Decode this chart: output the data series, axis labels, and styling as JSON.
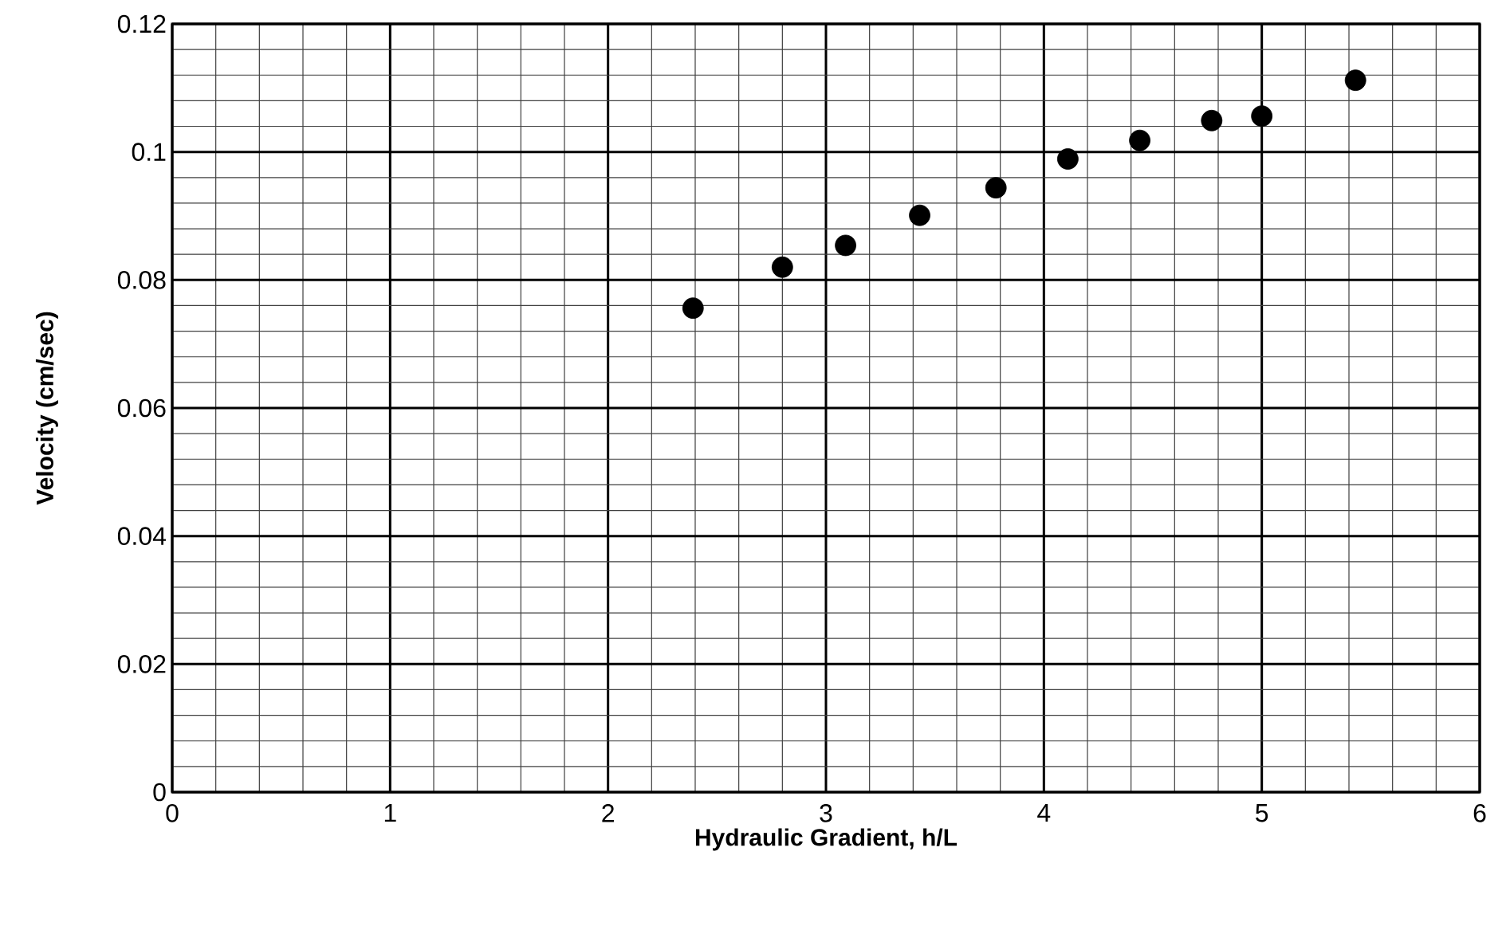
{
  "chart_data": {
    "type": "scatter",
    "xlabel": "Hydraulic Gradient, h/L",
    "ylabel": "Velocity (cm/sec)",
    "x": [
      2.39,
      2.8,
      3.09,
      3.43,
      3.78,
      4.11,
      4.44,
      4.77,
      5.0,
      5.43
    ],
    "series": [
      {
        "color": "#000000",
        "values": [
          0.0756,
          0.082,
          0.0854,
          0.0901,
          0.0944,
          0.0989,
          0.1018,
          0.1049,
          0.1056,
          0.1112
        ]
      }
    ],
    "xlim": [
      0,
      6
    ],
    "ylim": [
      0,
      0.12
    ],
    "xticks": [
      0,
      1,
      2,
      3,
      4,
      5,
      6
    ],
    "yticks": [
      0,
      0.02,
      0.04,
      0.06,
      0.08,
      0.1,
      0.12
    ],
    "grid": true,
    "marker": "circle"
  }
}
